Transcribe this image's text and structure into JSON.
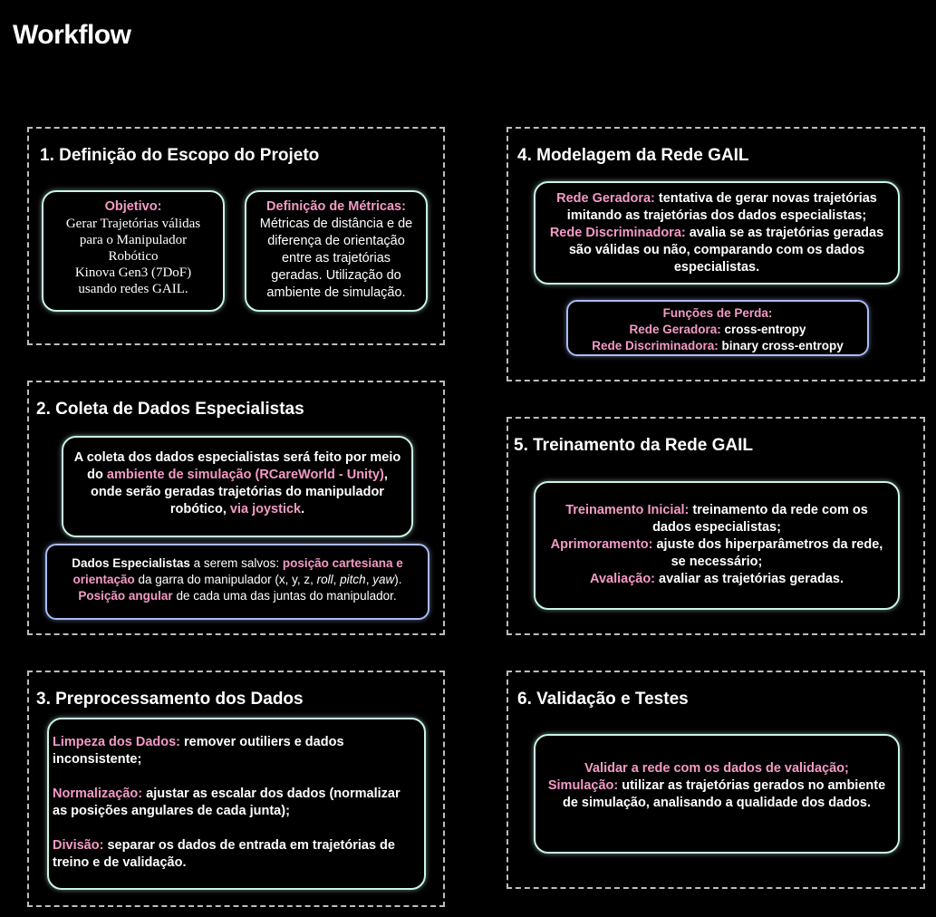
{
  "title": "Workflow",
  "sections": [
    {
      "heading": "1. Definição do Escopo do Projeto",
      "objetivo_label": "Objetivo:",
      "objetivo_lines": [
        "Gerar Trajetórias válidas",
        "para o Manipulador",
        "Robótico",
        "Kinova Gen3 (7DoF)",
        "usando redes GAIL."
      ],
      "metricas_label": "Definição de Métricas:",
      "metricas_lines": [
        "Métricas de distância e de",
        "diferença de orientação",
        "entre as trajetórias",
        "geradas. Utilização do",
        "ambiente de simulação."
      ]
    },
    {
      "heading": "2. Coleta de Dados Especialistas",
      "coleta": {
        "t1": "A coleta dos dados especialistas será feito por meio do ",
        "h1": "ambiente de simulação (RCareWorld - Unity)",
        "t2": ", onde serão geradas trajetórias do manipulador robótico, ",
        "h2": "via joystick",
        "t3": "."
      },
      "dados": {
        "t1": "Dados Especialistas",
        "t2": " a serem salvos: ",
        "h1": "posição cartesiana e orientação",
        "t3": " da garra do manipulador (x, y, z, ",
        "i1": "roll",
        "t4": ", ",
        "i2": "pitch",
        "t5": ", ",
        "i3": "yaw",
        "t6": ").",
        "h2": "Posição angular",
        "t7": " de cada uma das juntas do manipulador."
      }
    },
    {
      "heading": "3. Preprocessamento dos Dados",
      "items": [
        {
          "label": "Limpeza dos Dados:",
          "text": " remover outiliers e dados inconsistente;"
        },
        {
          "label": "Normalização:",
          "text": " ajustar as escalar dos dados (normalizar as posições angulares de cada junta);"
        },
        {
          "label": "Divisão:",
          "text": " separar os dados de entrada em trajetórias de treino e de validação."
        }
      ]
    },
    {
      "heading": "4. Modelagem da Rede GAIL",
      "geradora_label": "Rede Geradora:",
      "geradora_text": " tentativa de gerar novas trajetórias imitando as trajetórias dos dados especialistas;",
      "discriminadora_label": "Rede Discriminadora:",
      "discriminadora_text": " avalia se as trajetórias geradas são válidas ou não, comparando com os dados especialistas.",
      "perda_title": "Funções de Perda:",
      "perda_items": [
        {
          "label": "Rede Geradora:",
          "text": " cross-entropy"
        },
        {
          "label": "Rede Discriminadora:",
          "text": " binary cross-entropy"
        }
      ]
    },
    {
      "heading": "5. Treinamento da Rede GAIL",
      "items": [
        {
          "label": "Treinamento Inicial:",
          "text": " treinamento da rede com os dados especialistas;"
        },
        {
          "label": "Aprimoramento:",
          "text": " ajuste dos hiperparâmetros da rede, se necessário;"
        },
        {
          "label": "Avaliação:",
          "text": " avaliar as trajetórias geradas."
        }
      ]
    },
    {
      "heading": "6. Validação e Testes",
      "validar": "Validar a rede com os dados de validação;",
      "sim_label": "Simulação:",
      "sim_text": " utilizar as trajetórias gerados no ambiente de simulação, analisando a qualidade dos dados."
    }
  ],
  "colors": {
    "background": "#000000",
    "highlight": "#f49ac6",
    "box_border": "#c8f5e6",
    "box_border_alt": "#a9bcf5",
    "section_border": "#bdbdbd"
  }
}
